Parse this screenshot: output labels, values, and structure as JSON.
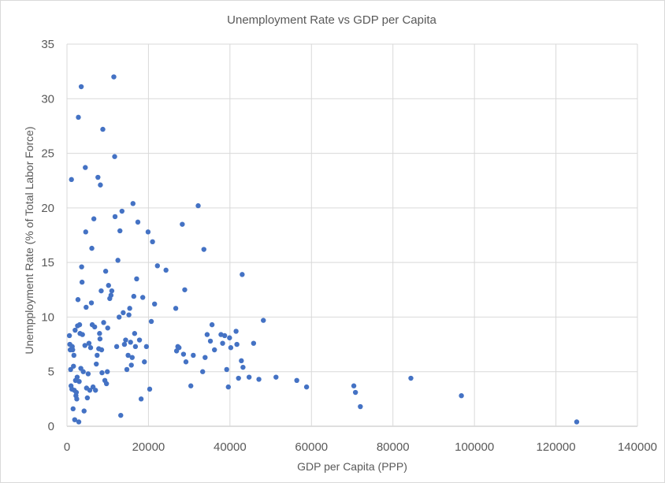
{
  "chart_data": {
    "type": "scatter",
    "title": "Unemployment Rate vs GDP per Capita",
    "xlabel": "GDP per Capita (PPP)",
    "ylabel": "Unempployment Rate (% of Total Labor Force)",
    "xlim": [
      0,
      140000
    ],
    "ylim": [
      0,
      35
    ],
    "xticks": [
      0,
      20000,
      40000,
      60000,
      80000,
      100000,
      120000,
      140000
    ],
    "yticks": [
      0,
      5,
      10,
      15,
      20,
      25,
      30,
      35
    ],
    "grid": true,
    "legend": "none",
    "marker_color": "#4472c4",
    "series": [
      {
        "points": [
          [
            600,
            8.3
          ],
          [
            700,
            7.5
          ],
          [
            800,
            7.0
          ],
          [
            900,
            5.2
          ],
          [
            1000,
            3.7
          ],
          [
            1100,
            22.6
          ],
          [
            1200,
            3.4
          ],
          [
            1300,
            7.3
          ],
          [
            1400,
            7.0
          ],
          [
            1500,
            1.6
          ],
          [
            1600,
            5.5
          ],
          [
            1700,
            6.5
          ],
          [
            1800,
            3.3
          ],
          [
            1900,
            0.6
          ],
          [
            2000,
            8.8
          ],
          [
            2100,
            4.2
          ],
          [
            2200,
            2.8
          ],
          [
            2300,
            3.1
          ],
          [
            2400,
            2.5
          ],
          [
            2500,
            4.5
          ],
          [
            2600,
            9.2
          ],
          [
            2700,
            11.6
          ],
          [
            2800,
            28.3
          ],
          [
            2900,
            0.4
          ],
          [
            3000,
            4.1
          ],
          [
            3100,
            9.3
          ],
          [
            3200,
            8.5
          ],
          [
            3400,
            5.3
          ],
          [
            3500,
            31.1
          ],
          [
            3600,
            14.6
          ],
          [
            3700,
            13.2
          ],
          [
            3800,
            8.4
          ],
          [
            4000,
            5.0
          ],
          [
            4200,
            1.4
          ],
          [
            4400,
            7.4
          ],
          [
            4500,
            23.7
          ],
          [
            4600,
            17.8
          ],
          [
            4700,
            10.9
          ],
          [
            4800,
            3.5
          ],
          [
            5000,
            2.6
          ],
          [
            5200,
            4.8
          ],
          [
            5400,
            7.6
          ],
          [
            5600,
            3.3
          ],
          [
            5800,
            7.2
          ],
          [
            6000,
            11.3
          ],
          [
            6100,
            16.3
          ],
          [
            6200,
            9.3
          ],
          [
            6400,
            3.6
          ],
          [
            6600,
            19.0
          ],
          [
            6800,
            9.1
          ],
          [
            7000,
            3.3
          ],
          [
            7200,
            5.7
          ],
          [
            7400,
            6.5
          ],
          [
            7600,
            22.8
          ],
          [
            7800,
            7.1
          ],
          [
            8000,
            8.5
          ],
          [
            8100,
            8.0
          ],
          [
            8200,
            22.1
          ],
          [
            8400,
            12.4
          ],
          [
            8500,
            7.0
          ],
          [
            8600,
            4.9
          ],
          [
            8800,
            27.2
          ],
          [
            9000,
            9.5
          ],
          [
            9300,
            4.2
          ],
          [
            9500,
            14.2
          ],
          [
            9700,
            3.9
          ],
          [
            9900,
            5.0
          ],
          [
            10000,
            9.0
          ],
          [
            10200,
            12.9
          ],
          [
            10500,
            11.7
          ],
          [
            10800,
            12.0
          ],
          [
            11000,
            12.4
          ],
          [
            11500,
            32.0
          ],
          [
            11700,
            24.7
          ],
          [
            11800,
            19.2
          ],
          [
            12200,
            7.3
          ],
          [
            12500,
            15.2
          ],
          [
            12800,
            10.0
          ],
          [
            13000,
            17.9
          ],
          [
            13200,
            1.0
          ],
          [
            13500,
            19.7
          ],
          [
            13800,
            10.4
          ],
          [
            14100,
            7.5
          ],
          [
            14400,
            7.9
          ],
          [
            14700,
            5.2
          ],
          [
            15000,
            6.5
          ],
          [
            15200,
            10.2
          ],
          [
            15400,
            10.8
          ],
          [
            15600,
            7.7
          ],
          [
            15800,
            5.6
          ],
          [
            16000,
            6.3
          ],
          [
            16200,
            20.4
          ],
          [
            16400,
            11.9
          ],
          [
            16600,
            8.5
          ],
          [
            16800,
            7.3
          ],
          [
            17100,
            13.5
          ],
          [
            17400,
            18.7
          ],
          [
            17800,
            7.9
          ],
          [
            18200,
            2.5
          ],
          [
            18600,
            11.8
          ],
          [
            19000,
            5.9
          ],
          [
            19500,
            7.3
          ],
          [
            19900,
            17.8
          ],
          [
            20300,
            3.4
          ],
          [
            20700,
            9.6
          ],
          [
            21000,
            16.9
          ],
          [
            21500,
            11.2
          ],
          [
            22200,
            14.7
          ],
          [
            24300,
            14.3
          ],
          [
            26700,
            10.8
          ],
          [
            26900,
            6.9
          ],
          [
            27200,
            7.3
          ],
          [
            27500,
            7.2
          ],
          [
            28300,
            18.5
          ],
          [
            28600,
            6.6
          ],
          [
            28900,
            12.5
          ],
          [
            29200,
            5.9
          ],
          [
            30400,
            3.7
          ],
          [
            31000,
            6.5
          ],
          [
            32200,
            20.2
          ],
          [
            33300,
            5.0
          ],
          [
            33600,
            16.2
          ],
          [
            33900,
            6.3
          ],
          [
            34400,
            8.4
          ],
          [
            35200,
            7.8
          ],
          [
            35600,
            9.3
          ],
          [
            36200,
            7.0
          ],
          [
            37800,
            8.4
          ],
          [
            38200,
            7.6
          ],
          [
            38700,
            8.3
          ],
          [
            39200,
            5.2
          ],
          [
            39600,
            3.6
          ],
          [
            39900,
            8.1
          ],
          [
            40200,
            7.2
          ],
          [
            41500,
            8.7
          ],
          [
            41700,
            7.5
          ],
          [
            42100,
            4.4
          ],
          [
            42800,
            6.0
          ],
          [
            43000,
            13.9
          ],
          [
            43200,
            5.4
          ],
          [
            44700,
            4.5
          ],
          [
            45800,
            7.6
          ],
          [
            47100,
            4.3
          ],
          [
            48200,
            9.7
          ],
          [
            51300,
            4.5
          ],
          [
            56400,
            4.2
          ],
          [
            58800,
            3.6
          ],
          [
            70400,
            3.7
          ],
          [
            70800,
            3.1
          ],
          [
            72000,
            1.8
          ],
          [
            84400,
            4.4
          ],
          [
            96800,
            2.8
          ],
          [
            125100,
            0.4
          ]
        ]
      }
    ]
  }
}
